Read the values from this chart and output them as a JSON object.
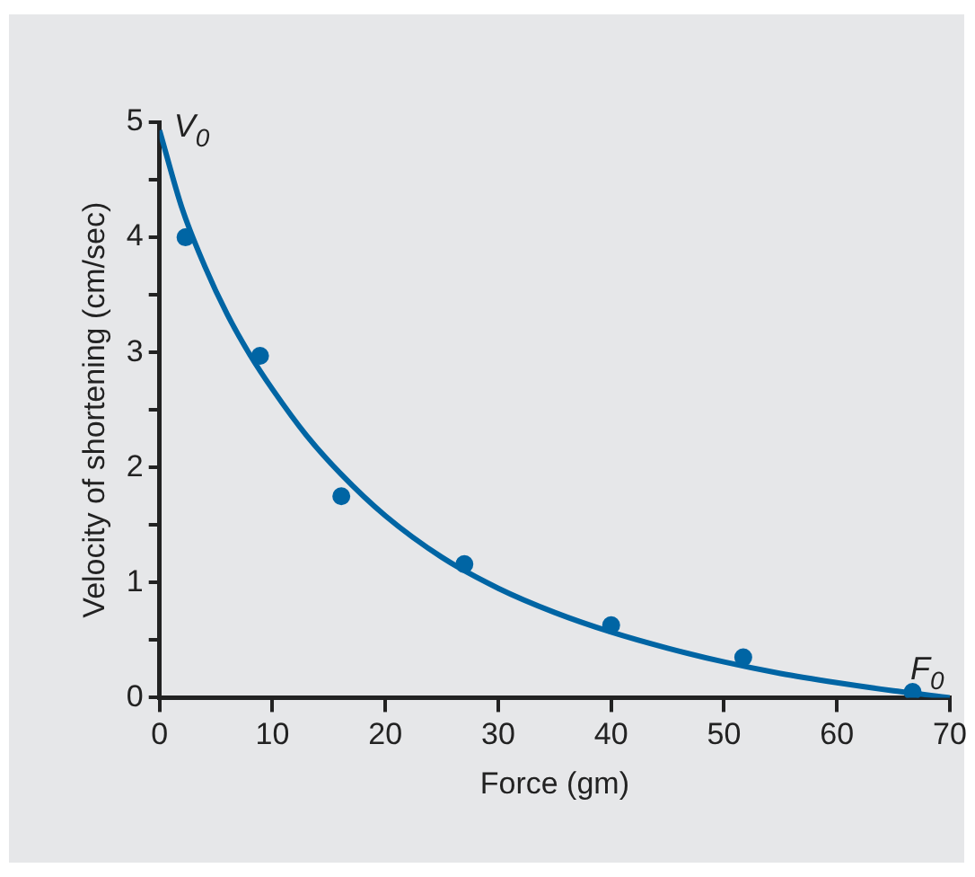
{
  "chart_data": {
    "type": "scatter",
    "xlabel": "Force (gm)",
    "ylabel": "Velocity of shortening (cm/sec)",
    "xlim": [
      0,
      70
    ],
    "xticks": [
      0,
      10,
      20,
      30,
      40,
      50,
      60,
      70
    ],
    "ylim": [
      0,
      5
    ],
    "yticks": [
      0,
      {
        "value": 0.5,
        "label": null
      },
      1,
      {
        "value": 1.5,
        "label": null
      },
      2,
      {
        "value": 2.5,
        "label": null
      },
      3,
      {
        "value": 3.5,
        "label": null
      },
      4,
      {
        "value": 4.5,
        "label": null
      },
      5
    ],
    "grid": false,
    "legend": false,
    "marker": "circle",
    "series": [
      {
        "type": "scatter",
        "color": "#0065a4",
        "x": [
          2.3,
          8.9,
          16.1,
          27,
          40,
          51.7,
          66.7
        ],
        "values": [
          4.0,
          2.97,
          1.75,
          1.16,
          0.63,
          0.35,
          0.05
        ]
      },
      {
        "type": "line",
        "color": "#0065a4",
        "marker": "none",
        "line_style": "solid",
        "x": [
          0,
          2,
          4,
          6,
          8,
          10,
          13,
          16,
          20,
          25,
          30,
          35,
          40,
          45,
          50,
          55,
          60,
          65,
          70
        ],
        "values": [
          4.93,
          4.25,
          3.75,
          3.33,
          2.98,
          2.68,
          2.28,
          1.95,
          1.58,
          1.22,
          0.95,
          0.74,
          0.57,
          0.43,
          0.31,
          0.21,
          0.13,
          0.06,
          0
        ]
      }
    ],
    "annotations": [
      {
        "text": "V$_{0}$",
        "x": 0,
        "y": 5
      },
      {
        "text": "F$_{0}$",
        "x": 70,
        "y": 0
      }
    ]
  }
}
